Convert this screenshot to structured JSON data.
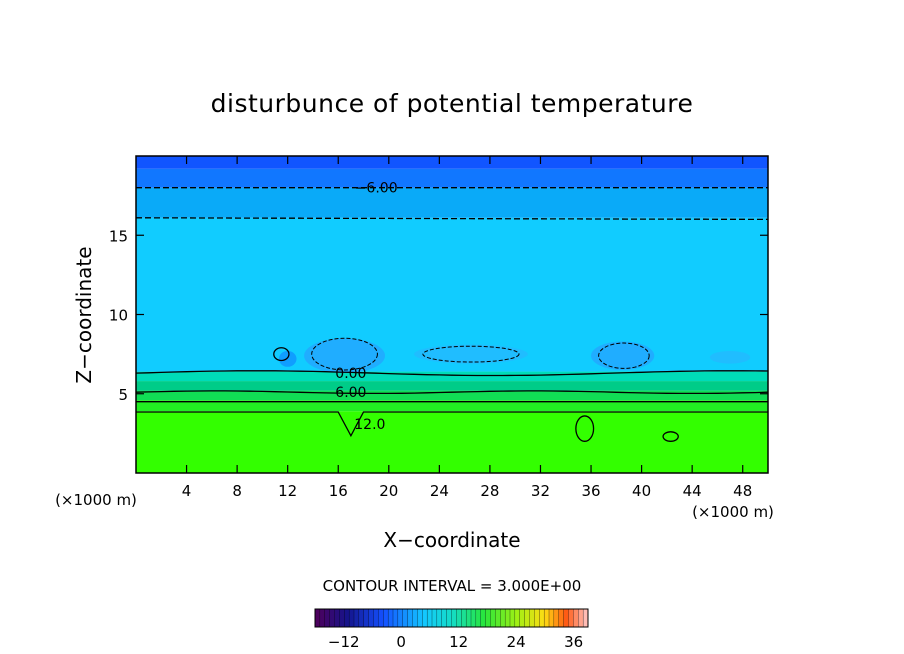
{
  "chart_data": {
    "type": "heatmap",
    "title": "disturbunce of potential temperature",
    "xlabel": "X−coordinate",
    "ylabel": "Z−coordinate",
    "x_unit_left": "(×1000 m)",
    "x_unit_right": "(×1000 m)",
    "xlim": [
      0,
      50
    ],
    "ylim": [
      0,
      20
    ],
    "x_ticks": [
      4,
      8,
      12,
      16,
      20,
      24,
      28,
      32,
      36,
      40,
      44,
      48
    ],
    "y_ticks": [
      5,
      10,
      15
    ],
    "contour_interval_text": "CONTOUR INTERVAL = 3.000E+00",
    "contour_labels": [
      {
        "text": "−6.00",
        "x": 19,
        "z": 18.0
      },
      {
        "text": "0.00",
        "x": 17,
        "z": 6.3
      },
      {
        "text": "6.00",
        "x": 17,
        "z": 5.1
      },
      {
        "text": "12.0",
        "x": 18.5,
        "z": 3.1
      }
    ],
    "layers": [
      {
        "z_from": 0,
        "z_to": 3.9,
        "value": 15,
        "color": "#33ff00"
      },
      {
        "z_from": 3.9,
        "z_to": 4.6,
        "value": 12,
        "color": "#22ee22"
      },
      {
        "z_from": 4.6,
        "z_to": 5.2,
        "value": 9,
        "color": "#11dd55"
      },
      {
        "z_from": 5.2,
        "z_to": 5.8,
        "value": 6,
        "color": "#00cc88"
      },
      {
        "z_from": 5.8,
        "z_to": 6.4,
        "value": 3,
        "color": "#00dcb8"
      },
      {
        "z_from": 6.4,
        "z_to": 16.1,
        "value": -3,
        "color": "#11ccff"
      },
      {
        "z_from": 16.1,
        "z_to": 18.0,
        "value": -6,
        "color": "#0aaaf8"
      },
      {
        "z_from": 18.0,
        "z_to": 19.2,
        "value": -9,
        "color": "#1177ff"
      },
      {
        "z_from": 19.2,
        "z_to": 20,
        "value": -12,
        "color": "#1155ff"
      }
    ],
    "colorbar": {
      "min": -18,
      "max": 39,
      "tick_labels": [
        "−12",
        "0",
        "12",
        "24",
        "36"
      ],
      "tick_values": [
        -12,
        0,
        12,
        24,
        36
      ]
    }
  }
}
